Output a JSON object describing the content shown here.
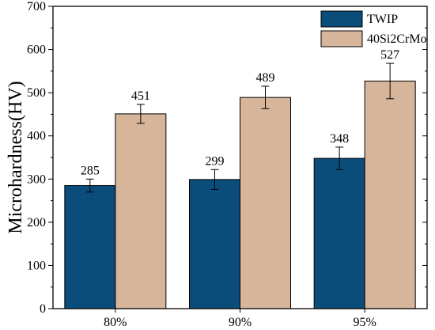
{
  "chart_data": {
    "type": "bar",
    "categories": [
      "80%",
      "90%",
      "95%"
    ],
    "series": [
      {
        "name": "TWIP",
        "color": "#0b4d7a",
        "values": [
          285,
          299,
          348
        ],
        "errors": [
          15,
          23,
          26
        ]
      },
      {
        "name": "40Si2CrMo",
        "color": "#d7b59b",
        "values": [
          451,
          489,
          527
        ],
        "errors": [
          22,
          26,
          41
        ]
      }
    ],
    "ylabel": "Microhardness(HV)",
    "xlabel": "",
    "ylim": [
      0,
      700
    ],
    "yticks": [
      0,
      100,
      200,
      300,
      400,
      500,
      600,
      700
    ],
    "grid": false,
    "legend_position": "top-right",
    "show_value_labels": true
  }
}
